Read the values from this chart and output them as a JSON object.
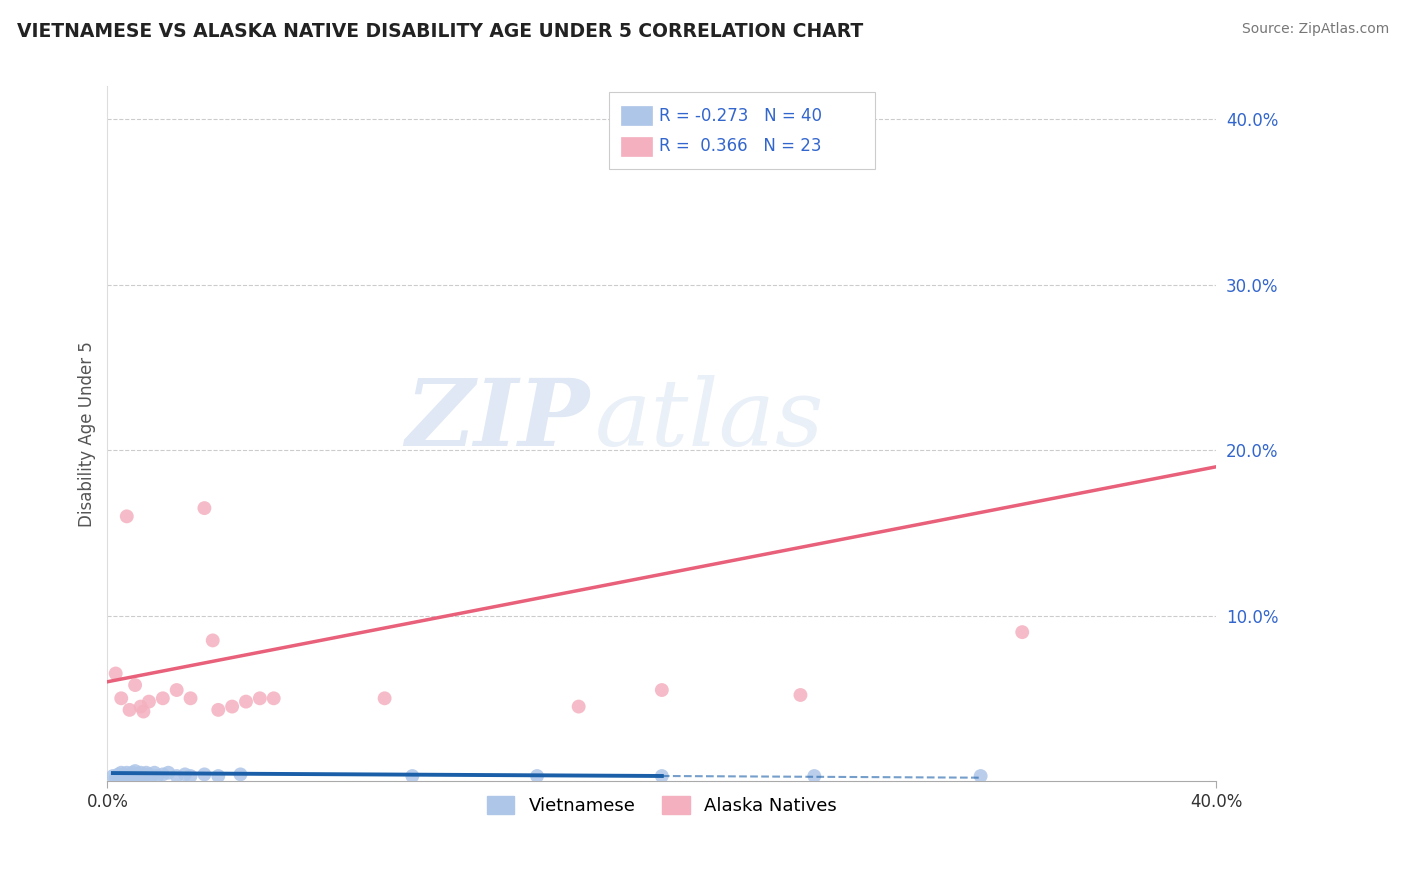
{
  "title": "VIETNAMESE VS ALASKA NATIVE DISABILITY AGE UNDER 5 CORRELATION CHART",
  "source": "Source: ZipAtlas.com",
  "ylabel": "Disability Age Under 5",
  "xlim": [
    0.0,
    0.4
  ],
  "ylim": [
    0.0,
    0.42
  ],
  "background_color": "#ffffff",
  "grid_color": "#cccccc",
  "vietnamese_x": [
    0.002,
    0.003,
    0.004,
    0.004,
    0.005,
    0.005,
    0.006,
    0.006,
    0.007,
    0.007,
    0.008,
    0.008,
    0.009,
    0.009,
    0.01,
    0.01,
    0.011,
    0.011,
    0.012,
    0.012,
    0.013,
    0.013,
    0.014,
    0.015,
    0.016,
    0.017,
    0.018,
    0.02,
    0.022,
    0.025,
    0.028,
    0.03,
    0.035,
    0.04,
    0.048,
    0.11,
    0.155,
    0.2,
    0.255,
    0.315
  ],
  "vietnamese_y": [
    0.003,
    0.002,
    0.004,
    0.003,
    0.005,
    0.003,
    0.004,
    0.002,
    0.005,
    0.003,
    0.004,
    0.003,
    0.005,
    0.002,
    0.006,
    0.003,
    0.004,
    0.003,
    0.005,
    0.003,
    0.004,
    0.002,
    0.005,
    0.004,
    0.003,
    0.005,
    0.003,
    0.004,
    0.005,
    0.003,
    0.004,
    0.003,
    0.004,
    0.003,
    0.004,
    0.003,
    0.003,
    0.003,
    0.003,
    0.003
  ],
  "vietnamese_color": "#aec6e8",
  "vietnamese_line_color": "#1a5fa8",
  "vietnamese_line_solid_end": 0.2,
  "alaska_x": [
    0.003,
    0.005,
    0.007,
    0.008,
    0.01,
    0.012,
    0.013,
    0.015,
    0.02,
    0.025,
    0.03,
    0.035,
    0.038,
    0.04,
    0.045,
    0.05,
    0.055,
    0.06,
    0.1,
    0.17,
    0.2,
    0.25,
    0.33
  ],
  "alaska_y": [
    0.065,
    0.05,
    0.16,
    0.043,
    0.058,
    0.045,
    0.042,
    0.048,
    0.05,
    0.055,
    0.05,
    0.165,
    0.085,
    0.043,
    0.045,
    0.048,
    0.05,
    0.05,
    0.05,
    0.045,
    0.055,
    0.052,
    0.09
  ],
  "alaska_color": "#f4b0bf",
  "alaska_line_color": "#e8607a",
  "alaska_line_x0": 0.0,
  "alaska_line_y0": 0.06,
  "alaska_line_x1": 0.4,
  "alaska_line_y1": 0.19,
  "vietnamese_line_x0": 0.002,
  "vietnamese_line_y0": 0.0048,
  "vietnamese_line_x1": 0.315,
  "vietnamese_line_y1": 0.002,
  "r_vietnamese": -0.273,
  "n_vietnamese": 40,
  "r_alaska": 0.366,
  "n_alaska": 23,
  "legend_color_viet": "#aec6e8",
  "legend_color_alaska": "#f4b0bf",
  "stat_color": "#3366cc",
  "watermark_zip": "ZIP",
  "watermark_atlas": "atlas",
  "watermark_color_zip": "#c8d8f0",
  "watermark_color_atlas": "#b8cce4"
}
